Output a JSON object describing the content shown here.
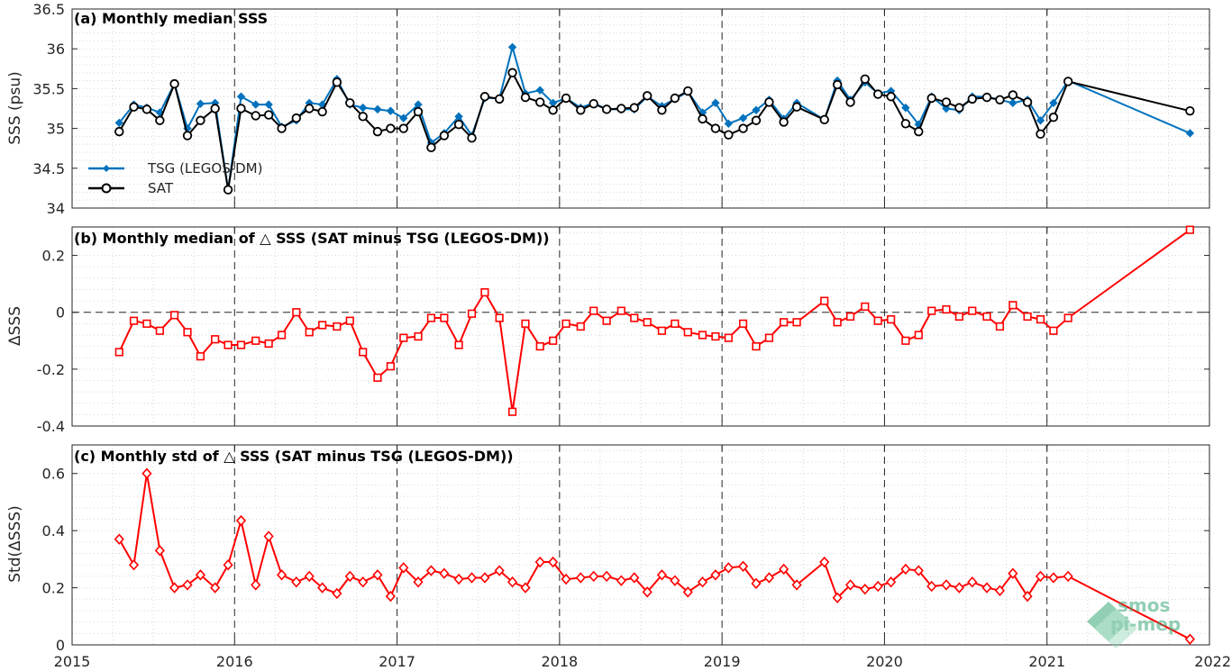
{
  "chart_data": [
    {
      "type": "line",
      "panel": "a",
      "title": "(a) Monthly median SSS",
      "ylabel": "SSS (psu)",
      "xlim": [
        2015,
        2022
      ],
      "ylim": [
        34,
        36.5
      ],
      "yticks": [
        34,
        34.5,
        35,
        35.5,
        36,
        36.5
      ],
      "ytick_labels": [
        "34",
        "34.5",
        "35",
        "35.5",
        "36",
        "36.5"
      ],
      "grid": true,
      "legend_placement": "lower-left",
      "x": [
        2015.29,
        2015.38,
        2015.46,
        2015.54,
        2015.63,
        2015.71,
        2015.79,
        2015.88,
        2015.96,
        2016.04,
        2016.13,
        2016.21,
        2016.29,
        2016.38,
        2016.46,
        2016.54,
        2016.63,
        2016.71,
        2016.79,
        2016.88,
        2016.96,
        2017.04,
        2017.13,
        2017.21,
        2017.29,
        2017.38,
        2017.46,
        2017.54,
        2017.63,
        2017.71,
        2017.79,
        2017.88,
        2017.96,
        2018.04,
        2018.13,
        2018.21,
        2018.29,
        2018.38,
        2018.46,
        2018.54,
        2018.63,
        2018.71,
        2018.79,
        2018.88,
        2018.96,
        2019.04,
        2019.13,
        2019.21,
        2019.29,
        2019.38,
        2019.46,
        2019.63,
        2019.71,
        2019.79,
        2019.88,
        2019.96,
        2020.04,
        2020.13,
        2020.21,
        2020.29,
        2020.38,
        2020.46,
        2020.54,
        2020.63,
        2020.71,
        2020.79,
        2020.88,
        2020.96,
        2021.04,
        2021.13,
        2021.88
      ],
      "series": [
        {
          "name": "TSG (LEGOS-DM)",
          "color": "#0072bd",
          "marker": "diamond-filled",
          "values": [
            35.07,
            35.3,
            35.26,
            35.2,
            35.56,
            35.0,
            35.31,
            35.32,
            34.23,
            35.4,
            35.3,
            35.3,
            35.02,
            35.1,
            35.32,
            35.3,
            35.62,
            35.3,
            35.26,
            35.24,
            35.22,
            35.13,
            35.3,
            34.82,
            34.94,
            35.15,
            34.91,
            35.38,
            35.38,
            36.02,
            35.44,
            35.48,
            35.32,
            35.38,
            35.26,
            35.32,
            35.24,
            35.24,
            35.24,
            35.4,
            35.28,
            35.37,
            35.46,
            35.2,
            35.32,
            35.06,
            35.13,
            35.23,
            35.36,
            35.12,
            35.32,
            35.11,
            35.6,
            35.36,
            35.58,
            35.44,
            35.47,
            35.26,
            35.05,
            35.4,
            35.25,
            35.23,
            35.4,
            35.4,
            35.36,
            35.32,
            35.36,
            35.1,
            35.32,
            35.6,
            34.94
          ]
        },
        {
          "name": "SAT",
          "color": "#000000",
          "marker": "circle-open",
          "values": [
            34.96,
            35.27,
            35.24,
            35.1,
            35.56,
            34.91,
            35.1,
            35.25,
            34.23,
            35.25,
            35.16,
            35.17,
            35.0,
            35.13,
            35.25,
            35.21,
            35.58,
            35.32,
            35.15,
            34.96,
            35.0,
            35.0,
            35.21,
            34.76,
            34.91,
            35.05,
            34.88,
            35.4,
            35.37,
            35.7,
            35.39,
            35.33,
            35.23,
            35.38,
            35.23,
            35.31,
            35.24,
            35.25,
            35.26,
            35.41,
            35.23,
            35.38,
            35.47,
            35.12,
            35.0,
            34.92,
            35.0,
            35.1,
            35.33,
            35.08,
            35.27,
            35.11,
            35.55,
            35.33,
            35.62,
            35.43,
            35.4,
            35.06,
            34.96,
            35.38,
            35.33,
            35.26,
            35.37,
            35.39,
            35.36,
            35.42,
            35.33,
            34.93,
            35.14,
            35.59,
            35.22
          ]
        }
      ],
      "legend": [
        "TSG (LEGOS-DM)",
        "SAT"
      ]
    },
    {
      "type": "line",
      "panel": "b",
      "title": "(b) Monthly median of △ SSS (SAT minus TSG (LEGOS-DM))",
      "ylabel": "ΔSSS",
      "xlim": [
        2015,
        2022
      ],
      "ylim": [
        -0.4,
        0.3
      ],
      "yticks": [
        -0.4,
        -0.2,
        0,
        0.2
      ],
      "ytick_labels": [
        "-0.4",
        "-0.2",
        "0",
        "0.2"
      ],
      "reference_line": 0,
      "grid": true,
      "x": [
        2015.29,
        2015.38,
        2015.46,
        2015.54,
        2015.63,
        2015.71,
        2015.79,
        2015.88,
        2015.96,
        2016.04,
        2016.13,
        2016.21,
        2016.29,
        2016.38,
        2016.46,
        2016.54,
        2016.63,
        2016.71,
        2016.79,
        2016.88,
        2016.96,
        2017.04,
        2017.13,
        2017.21,
        2017.29,
        2017.38,
        2017.46,
        2017.54,
        2017.63,
        2017.71,
        2017.79,
        2017.88,
        2017.96,
        2018.04,
        2018.13,
        2018.21,
        2018.29,
        2018.38,
        2018.46,
        2018.54,
        2018.63,
        2018.71,
        2018.79,
        2018.88,
        2018.96,
        2019.04,
        2019.13,
        2019.21,
        2019.29,
        2019.38,
        2019.46,
        2019.63,
        2019.71,
        2019.79,
        2019.88,
        2019.96,
        2020.04,
        2020.13,
        2020.21,
        2020.29,
        2020.38,
        2020.46,
        2020.54,
        2020.63,
        2020.71,
        2020.79,
        2020.88,
        2020.96,
        2021.04,
        2021.13,
        2021.88
      ],
      "series": [
        {
          "color": "#ff0000",
          "marker": "square-open",
          "values": [
            -0.14,
            -0.03,
            -0.04,
            -0.065,
            -0.01,
            -0.07,
            -0.155,
            -0.095,
            -0.115,
            -0.115,
            -0.1,
            -0.11,
            -0.08,
            0.0,
            -0.07,
            -0.045,
            -0.05,
            -0.03,
            -0.14,
            -0.23,
            -0.19,
            -0.09,
            -0.085,
            -0.02,
            -0.02,
            -0.115,
            -0.005,
            0.07,
            -0.02,
            -0.35,
            -0.04,
            -0.12,
            -0.1,
            -0.04,
            -0.05,
            0.005,
            -0.03,
            0.005,
            -0.02,
            -0.035,
            -0.065,
            -0.04,
            -0.07,
            -0.08,
            -0.085,
            -0.09,
            -0.04,
            -0.12,
            -0.09,
            -0.035,
            -0.035,
            0.04,
            -0.035,
            -0.015,
            0.02,
            -0.03,
            -0.025,
            -0.1,
            -0.08,
            0.005,
            0.01,
            -0.015,
            0.005,
            -0.015,
            -0.05,
            0.025,
            -0.015,
            -0.025,
            -0.065,
            -0.02,
            0.29
          ]
        }
      ]
    },
    {
      "type": "line",
      "panel": "c",
      "title": "(c) Monthly std of △ SSS (SAT minus TSG (LEGOS-DM))",
      "ylabel": "Std(ΔSSS)",
      "xlim": [
        2015,
        2022
      ],
      "ylim": [
        0,
        0.7
      ],
      "yticks": [
        0,
        0.2,
        0.4,
        0.6
      ],
      "ytick_labels": [
        "0",
        "0.2",
        "0.4",
        "0.6"
      ],
      "xticks": [
        2015,
        2016,
        2017,
        2018,
        2019,
        2020,
        2021,
        2022
      ],
      "xtick_labels": [
        "2015",
        "2016",
        "2017",
        "2018",
        "2019",
        "2020",
        "2021",
        "2022"
      ],
      "grid": true,
      "x": [
        2015.29,
        2015.38,
        2015.46,
        2015.54,
        2015.63,
        2015.71,
        2015.79,
        2015.88,
        2015.96,
        2016.04,
        2016.13,
        2016.21,
        2016.29,
        2016.38,
        2016.46,
        2016.54,
        2016.63,
        2016.71,
        2016.79,
        2016.88,
        2016.96,
        2017.04,
        2017.13,
        2017.21,
        2017.29,
        2017.38,
        2017.46,
        2017.54,
        2017.63,
        2017.71,
        2017.79,
        2017.88,
        2017.96,
        2018.04,
        2018.13,
        2018.21,
        2018.29,
        2018.38,
        2018.46,
        2018.54,
        2018.63,
        2018.71,
        2018.79,
        2018.88,
        2018.96,
        2019.04,
        2019.13,
        2019.21,
        2019.29,
        2019.38,
        2019.46,
        2019.63,
        2019.71,
        2019.79,
        2019.88,
        2019.96,
        2020.04,
        2020.13,
        2020.21,
        2020.29,
        2020.38,
        2020.46,
        2020.54,
        2020.63,
        2020.71,
        2020.79,
        2020.88,
        2020.96,
        2021.04,
        2021.13,
        2021.88
      ],
      "series": [
        {
          "color": "#ff0000",
          "marker": "diamond-open",
          "values": [
            0.37,
            0.28,
            0.6,
            0.33,
            0.2,
            0.21,
            0.245,
            0.2,
            0.28,
            0.435,
            0.21,
            0.38,
            0.245,
            0.22,
            0.24,
            0.2,
            0.18,
            0.24,
            0.22,
            0.245,
            0.17,
            0.27,
            0.22,
            0.26,
            0.25,
            0.23,
            0.235,
            0.235,
            0.26,
            0.22,
            0.2,
            0.29,
            0.29,
            0.23,
            0.235,
            0.24,
            0.24,
            0.225,
            0.235,
            0.185,
            0.245,
            0.225,
            0.185,
            0.22,
            0.245,
            0.27,
            0.275,
            0.215,
            0.235,
            0.265,
            0.21,
            0.29,
            0.165,
            0.21,
            0.195,
            0.205,
            0.22,
            0.265,
            0.26,
            0.205,
            0.21,
            0.2,
            0.22,
            0.2,
            0.19,
            0.25,
            0.17,
            0.24,
            0.235,
            0.24,
            0.02
          ]
        }
      ]
    }
  ],
  "logo": {
    "line1": "smos",
    "line2": "pi-mep",
    "color": "#3aa878"
  }
}
